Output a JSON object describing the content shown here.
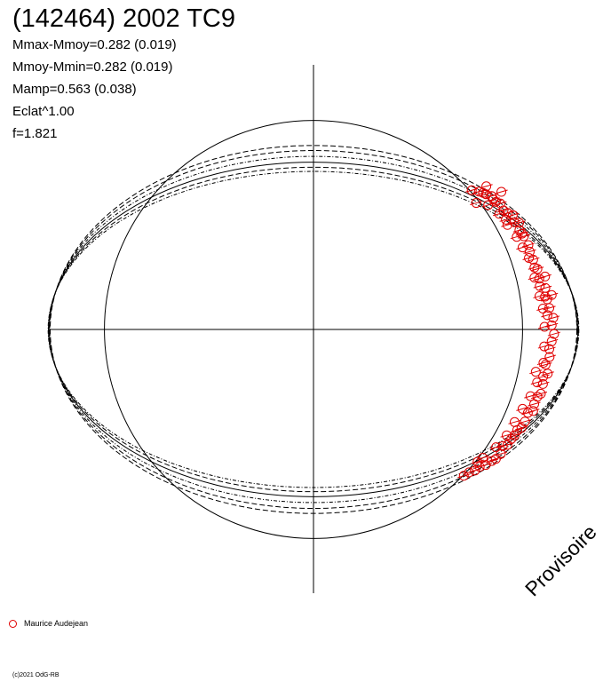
{
  "chart_data": {
    "type": "scatter",
    "title": "(142464) 2002 TC9",
    "stats": [
      "Mmax-Mmoy=0.282 (0.019)",
      "Mmoy-Mmin=0.282 (0.019)",
      "Mamp=0.563 (0.038)",
      "Eclat^1.00",
      "f=1.821"
    ],
    "watermark": "Provisoire",
    "legend": [
      {
        "name": "Maurice Audejean",
        "color": "#e00000",
        "marker": "circle"
      }
    ],
    "copyright": "(c)2021 OdG-RB",
    "mean_amplitude_fraction": 0.563,
    "observers": [
      {
        "name": "Maurice Audejean",
        "color": "#e00000",
        "points": [
          [
            0.598,
            0.526
          ],
          [
            0.625,
            0.521
          ],
          [
            0.641,
            0.516
          ],
          [
            0.653,
            0.541
          ],
          [
            0.652,
            0.511
          ],
          [
            0.673,
            0.504
          ],
          [
            0.68,
            0.491
          ],
          [
            0.689,
            0.482
          ],
          [
            0.706,
            0.476
          ],
          [
            0.718,
            0.45
          ],
          [
            0.734,
            0.44
          ],
          [
            0.727,
            0.415
          ],
          [
            0.753,
            0.432
          ],
          [
            0.759,
            0.405
          ],
          [
            0.777,
            0.403
          ],
          [
            0.778,
            0.375
          ],
          [
            0.788,
            0.362
          ],
          [
            0.795,
            0.352
          ],
          [
            0.812,
            0.319
          ],
          [
            0.817,
            0.294
          ],
          [
            0.83,
            0.264
          ],
          [
            0.835,
            0.234
          ],
          [
            0.846,
            0.229
          ],
          [
            0.853,
            0.192
          ],
          [
            0.855,
            0.164
          ],
          [
            0.876,
            0.157
          ],
          [
            0.875,
            0.124
          ],
          [
            0.883,
            0.114
          ],
          [
            0.891,
            0.081
          ],
          [
            0.884,
            0.054
          ],
          [
            0.906,
            0.044
          ],
          [
            0.9,
            0.016
          ],
          [
            0.909,
            -0.017
          ],
          [
            0.9,
            -0.045
          ],
          [
            0.891,
            -0.074
          ],
          [
            0.892,
            -0.104
          ],
          [
            0.877,
            -0.133
          ],
          [
            0.885,
            -0.167
          ],
          [
            0.868,
            -0.178
          ],
          [
            0.867,
            -0.206
          ],
          [
            0.859,
            -0.243
          ],
          [
            0.846,
            -0.254
          ],
          [
            0.834,
            -0.282
          ],
          [
            0.83,
            -0.308
          ],
          [
            0.81,
            -0.315
          ],
          [
            0.799,
            -0.348
          ],
          [
            0.786,
            -0.372
          ],
          [
            0.77,
            -0.38
          ],
          [
            0.76,
            -0.401
          ],
          [
            0.748,
            -0.413
          ],
          [
            0.733,
            -0.436
          ],
          [
            0.715,
            -0.441
          ],
          [
            0.708,
            -0.47
          ],
          [
            0.689,
            -0.489
          ],
          [
            0.674,
            -0.497
          ],
          [
            0.651,
            -0.512
          ],
          [
            0.628,
            -0.519
          ],
          [
            0.61,
            -0.533
          ],
          [
            0.588,
            -0.54
          ],
          [
            0.568,
            -0.553
          ],
          [
            0.615,
            0.478
          ],
          [
            0.66,
            0.47
          ],
          [
            0.702,
            0.437
          ],
          [
            0.733,
            0.395
          ],
          [
            0.768,
            0.35
          ],
          [
            0.79,
            0.31
          ],
          [
            0.814,
            0.27
          ],
          [
            0.835,
            0.196
          ],
          [
            0.854,
            0.126
          ],
          [
            0.867,
            0.079
          ],
          [
            0.873,
            0.01
          ],
          [
            0.872,
            -0.064
          ],
          [
            0.869,
            -0.126
          ],
          [
            0.845,
            -0.2
          ],
          [
            0.82,
            -0.252
          ],
          [
            0.79,
            -0.3
          ],
          [
            0.76,
            -0.35
          ],
          [
            0.73,
            -0.4
          ],
          [
            0.69,
            -0.445
          ],
          [
            0.64,
            -0.485
          ],
          [
            0.71,
            0.52
          ],
          [
            0.62,
            -0.5
          ],
          [
            0.875,
            0.2
          ],
          [
            0.9,
            0.13
          ],
          [
            0.84,
            -0.16
          ]
        ]
      }
    ],
    "model_curves": {
      "semi_major": 1.0,
      "semi_minor": 0.632,
      "offset": 0.0,
      "variant_scales": [
        1.0,
        0.97,
        1.035,
        1.07,
        0.945,
        1.1
      ]
    },
    "reference_circle": {
      "radius": 0.79
    }
  }
}
